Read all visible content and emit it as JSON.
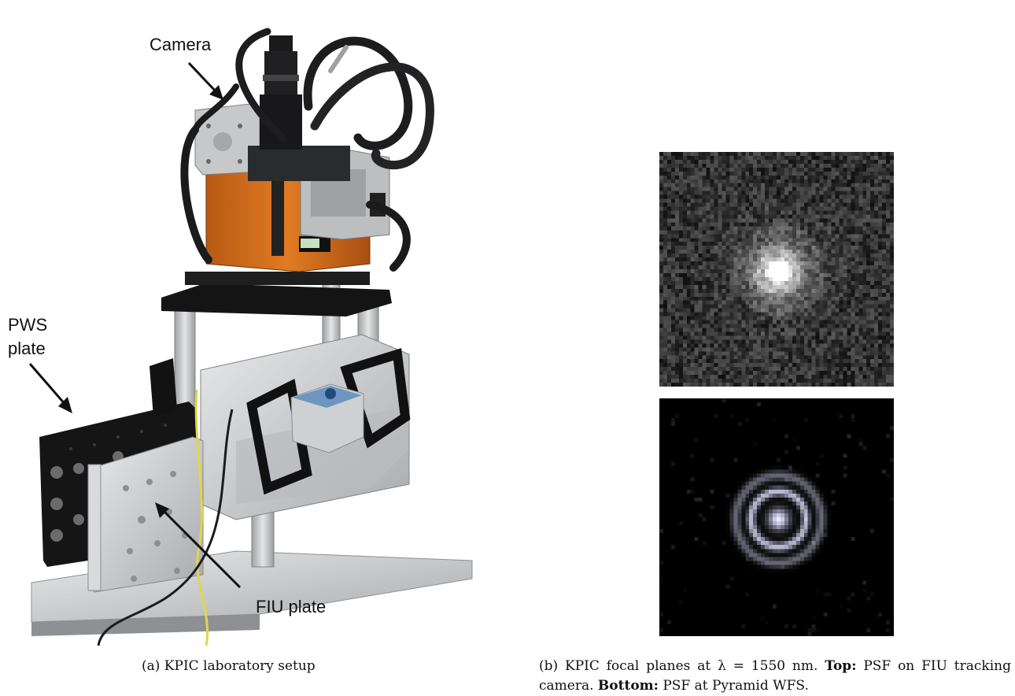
{
  "figure": {
    "panel_a": {
      "callouts": {
        "camera": "Camera",
        "pws_line1": "PWS",
        "pws_line2": "plate",
        "fiu": "FIU plate"
      },
      "caption": "(a) KPIC laboratory setup"
    },
    "panel_b": {
      "caption_part1": "(b) KPIC focal planes at λ = 1550 nm.",
      "caption_top_label": "Top:",
      "caption_part2": "PSF on FIU tracking camera.",
      "caption_bottom_label": "Bottom:",
      "caption_part3": "PSF at Pyramid WFS."
    }
  },
  "colors": {
    "camera_body": "#d9741f",
    "rail_aluminum": "#c9cacc",
    "plate_black": "#151515",
    "cable_yellow": "#e2d64a",
    "psf_top_bg": "#2a2a2a",
    "psf_bottom_bg": "#000000"
  }
}
